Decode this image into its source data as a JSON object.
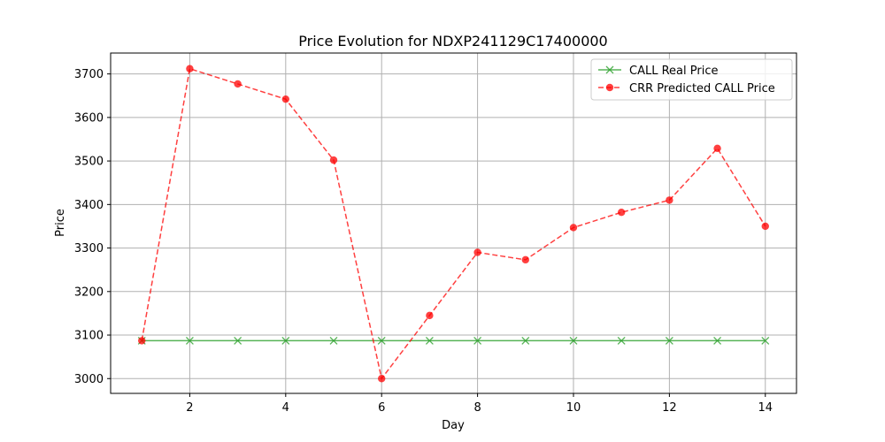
{
  "chart_data": {
    "type": "line",
    "title": "Price Evolution for NDXP241129C17400000",
    "xlabel": "Day",
    "ylabel": "Price",
    "x": [
      1,
      2,
      3,
      4,
      5,
      6,
      7,
      8,
      9,
      10,
      11,
      12,
      13,
      14
    ],
    "xlim": [
      0.35,
      14.65
    ],
    "ylim": [
      2966,
      3748
    ],
    "xticks": [
      2,
      4,
      6,
      8,
      10,
      12,
      14
    ],
    "yticks": [
      3000,
      3100,
      3200,
      3300,
      3400,
      3500,
      3600,
      3700
    ],
    "grid": true,
    "legend_position": "top-right",
    "series": [
      {
        "name": "CALL Real Price",
        "color": "#2ca02c",
        "line_style": "solid",
        "marker": "x",
        "values": [
          3087,
          3087,
          3087,
          3087,
          3087,
          3087,
          3087,
          3087,
          3087,
          3087,
          3087,
          3087,
          3087,
          3087
        ]
      },
      {
        "name": "CRR Predicted CALL Price",
        "color": "#ff0000",
        "line_style": "dashed",
        "marker": "circle",
        "values": [
          3087,
          3712,
          3677,
          3642,
          3502,
          3000,
          3145,
          3290,
          3273,
          3347,
          3382,
          3410,
          3529,
          3350
        ]
      }
    ]
  }
}
